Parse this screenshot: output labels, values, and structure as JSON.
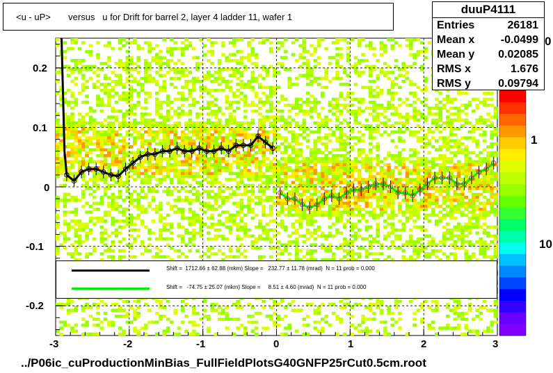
{
  "title": "<u - uP>       versus   u for Drift for barrel 2, layer 4 ladder 11, wafer 1",
  "stats": {
    "name": "duuP4111",
    "rows": [
      {
        "k": "Entries",
        "v": "26181"
      },
      {
        "k": "Mean x",
        "v": "-0.0499"
      },
      {
        "k": "Mean y",
        "v": "0.02085"
      },
      {
        "k": "RMS x",
        "v": "1.676"
      },
      {
        "k": "RMS y",
        "v": "0.09794"
      }
    ]
  },
  "footer": "../P06ic_cuProductionMinBias_FullFieldPlotsG40GNFP25rCut0.5cm.root",
  "legend": {
    "line1_text": "Shift =  1712.66 ± 62.88 (mkm) Slope =   232.77 ± 11.78 (mrad)  N = 11 prob = 0.000",
    "line2_text": "Shift =   -74.75 ± 25.07 (mkm) Slope =     8.51 ± 4.60 (mrad)  N = 11 prob = 0.000",
    "line1_color": "#000000",
    "line2_color": "#00ee00"
  },
  "colorbar": {
    "labels": [
      "1",
      "10"
    ],
    "partial_label": "0",
    "colors": [
      "#8000ff",
      "#6a00ff",
      "#3300ff",
      "#0000ff",
      "#0044ff",
      "#0088ff",
      "#00c0ff",
      "#00ffee",
      "#00ffaa",
      "#00ff66",
      "#33ff33",
      "#66ff00",
      "#99ff00",
      "#bbff00",
      "#ddff00",
      "#ffee00",
      "#ffcc00",
      "#ff9900",
      "#ff6600",
      "#ff3300",
      "#ff0000"
    ]
  },
  "chart_data": {
    "type": "scatter",
    "title": "<u - uP>       versus   u for Drift for barrel 2, layer 4 ladder 11, wafer 1",
    "xlim": [
      -3,
      3
    ],
    "ylim": [
      -0.25,
      0.25
    ],
    "x_ticks": [
      "-3",
      "-2",
      "-1",
      "0",
      "1",
      "2",
      "3"
    ],
    "y_ticks": [
      "0.2",
      "0.1",
      "0",
      "-0.1",
      "-0.2"
    ],
    "x_tick_values": [
      -3,
      -2,
      -1,
      0,
      1,
      2,
      3
    ],
    "y_tick_values": [
      0.2,
      0.1,
      0,
      -0.1,
      -0.2
    ],
    "grid": true,
    "series": [
      {
        "name": "Shift =  1712.66 ± 62.88 (mkm) Slope =   232.77 ± 11.78 (mrad)  N = 11 prob = 0.000",
        "color": "#000000",
        "points": [
          [
            -2.85,
            0.02
          ],
          [
            -2.75,
            0.01
          ],
          [
            -2.65,
            0.025
          ],
          [
            -2.55,
            0.03
          ],
          [
            -2.45,
            0.03
          ],
          [
            -2.35,
            0.025
          ],
          [
            -2.25,
            0.02
          ],
          [
            -2.15,
            0.018
          ],
          [
            -2.05,
            0.03
          ],
          [
            -1.95,
            0.04
          ],
          [
            -1.85,
            0.05
          ],
          [
            -1.75,
            0.055
          ],
          [
            -1.65,
            0.055
          ],
          [
            -1.55,
            0.06
          ],
          [
            -1.45,
            0.06
          ],
          [
            -1.35,
            0.065
          ],
          [
            -1.25,
            0.06
          ],
          [
            -1.15,
            0.06
          ],
          [
            -1.05,
            0.065
          ],
          [
            -0.95,
            0.06
          ],
          [
            -0.85,
            0.06
          ],
          [
            -0.75,
            0.065
          ],
          [
            -0.65,
            0.06
          ],
          [
            -0.55,
            0.07
          ],
          [
            -0.45,
            0.07
          ],
          [
            -0.35,
            0.07
          ],
          [
            -0.25,
            0.085
          ],
          [
            -0.15,
            0.075
          ],
          [
            -0.05,
            0.065
          ]
        ]
      },
      {
        "name": "Shift =   -74.75 ± 25.07 (mkm) Slope =     8.51 ± 4.60 (mrad)  N = 11 prob = 0.000",
        "color": "#00ee00",
        "points": [
          [
            0.05,
            -0.01
          ],
          [
            0.15,
            -0.02
          ],
          [
            0.25,
            -0.02
          ],
          [
            0.35,
            -0.03
          ],
          [
            0.45,
            -0.035
          ],
          [
            0.55,
            -0.03
          ],
          [
            0.65,
            -0.02
          ],
          [
            0.75,
            -0.015
          ],
          [
            0.85,
            -0.02
          ],
          [
            0.95,
            -0.01
          ],
          [
            1.05,
            -0.005
          ],
          [
            1.15,
            -0.005
          ],
          [
            1.25,
            0
          ],
          [
            1.35,
            0.005
          ],
          [
            1.45,
            0.005
          ],
          [
            1.55,
            0
          ],
          [
            1.65,
            -0.01
          ],
          [
            1.75,
            -0.01
          ],
          [
            1.85,
            -0.015
          ],
          [
            1.95,
            -0.005
          ],
          [
            2.05,
            0.005
          ],
          [
            2.15,
            0.015
          ],
          [
            2.25,
            0.015
          ],
          [
            2.35,
            0.015
          ],
          [
            2.45,
            0.005
          ],
          [
            2.55,
            0.005
          ],
          [
            2.65,
            0.015
          ],
          [
            2.75,
            0.025
          ],
          [
            2.85,
            0.03
          ],
          [
            2.95,
            0.04
          ]
        ]
      }
    ]
  }
}
